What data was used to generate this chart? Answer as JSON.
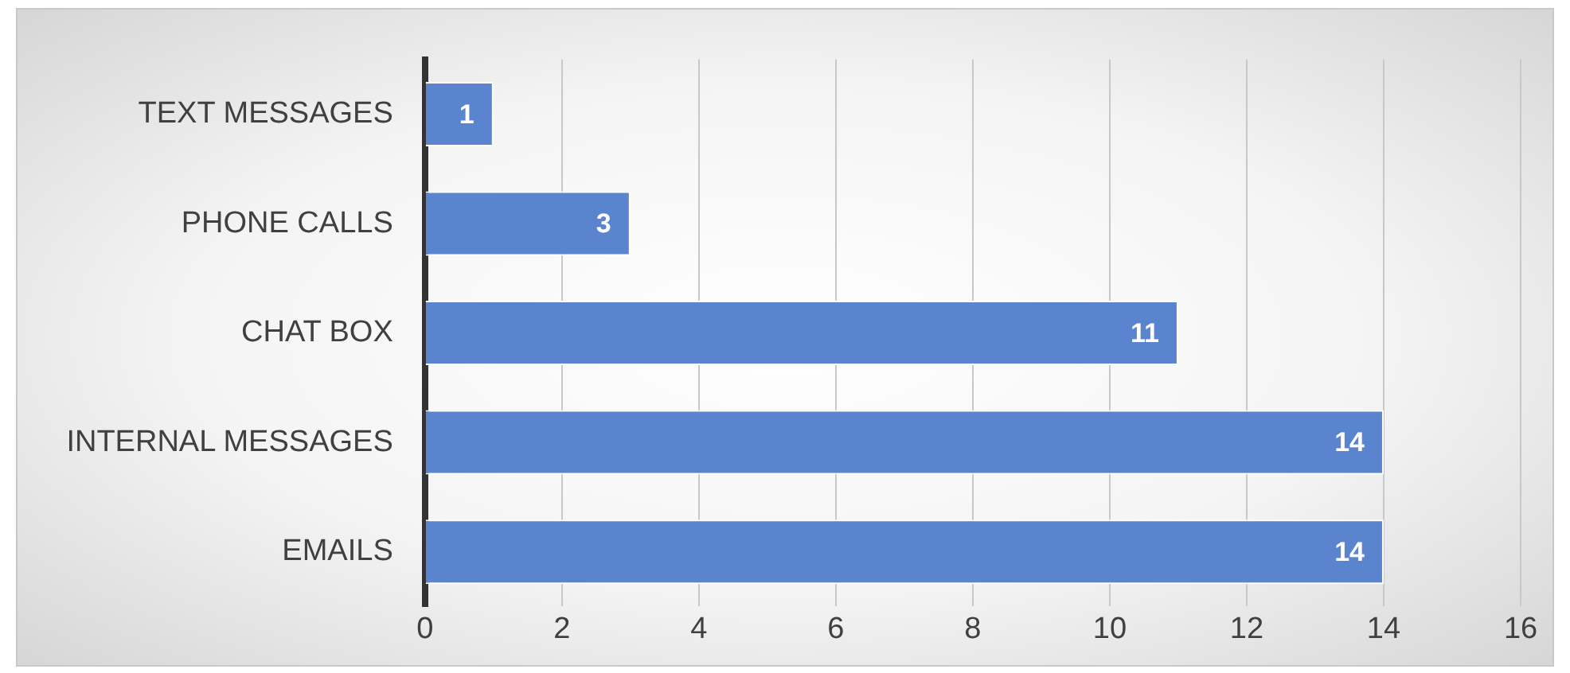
{
  "chart_data": {
    "type": "bar",
    "orientation": "horizontal",
    "categories": [
      "TEXT MESSAGES",
      "PHONE CALLS",
      "CHAT BOX",
      "INTERNAL MESSAGES",
      "EMAILS"
    ],
    "values": [
      1,
      3,
      11,
      14,
      14
    ],
    "color": "#5b84cf",
    "xlim": [
      0,
      16
    ],
    "xticks": [
      0,
      2,
      4,
      6,
      8,
      10,
      12,
      14,
      16
    ],
    "grid": "x",
    "data_labels": true,
    "legend": false
  }
}
